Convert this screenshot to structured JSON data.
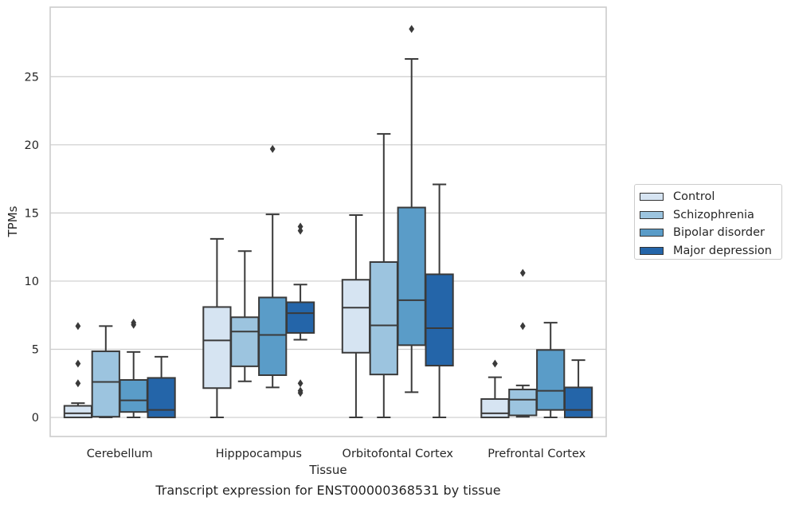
{
  "chart_data": {
    "type": "box",
    "title": "Transcript expression for ENST00000368531 by tissue",
    "xlabel": "Tissue",
    "ylabel": "TPMs",
    "ylim": [
      -1.4,
      30.1
    ],
    "yticks": [
      0,
      5,
      10,
      15,
      20,
      25
    ],
    "grid": "horizontal",
    "legend_position": "right",
    "categories": [
      "Cerebellum",
      "Hipppocampus",
      "Orbitofontal Cortex",
      "Prefrontal Cortex"
    ],
    "series": [
      {
        "name": "Control",
        "color": "#d6e4f2",
        "boxes": [
          {
            "whislo": 0,
            "q1": 0,
            "med": 0.3,
            "q3": 0.85,
            "whishi": 1.05,
            "fliers": [
              2.5,
              3.95,
              6.7
            ]
          },
          {
            "whislo": 0,
            "q1": 2.15,
            "med": 5.65,
            "q3": 8.1,
            "whishi": 13.1,
            "fliers": []
          },
          {
            "whislo": 0,
            "q1": 4.75,
            "med": 8.05,
            "q3": 10.1,
            "whishi": 14.85,
            "fliers": []
          },
          {
            "whislo": 0,
            "q1": 0,
            "med": 0.3,
            "q3": 1.35,
            "whishi": 2.95,
            "fliers": [
              3.95
            ]
          }
        ]
      },
      {
        "name": "Schizophrenia",
        "color": "#9cc4df",
        "boxes": [
          {
            "whislo": 0,
            "q1": 0.05,
            "med": 2.6,
            "q3": 4.85,
            "whishi": 6.7,
            "fliers": []
          },
          {
            "whislo": 2.65,
            "q1": 3.75,
            "med": 6.3,
            "q3": 7.35,
            "whishi": 12.2,
            "fliers": []
          },
          {
            "whislo": 0,
            "q1": 3.15,
            "med": 6.75,
            "q3": 11.4,
            "whishi": 20.8,
            "fliers": []
          },
          {
            "whislo": 0.05,
            "q1": 0.15,
            "med": 1.3,
            "q3": 2.05,
            "whishi": 2.35,
            "fliers": [
              6.7,
              10.6
            ]
          }
        ]
      },
      {
        "name": "Bipolar disorder",
        "color": "#5a9cc8",
        "boxes": [
          {
            "whislo": 0,
            "q1": 0.4,
            "med": 1.25,
            "q3": 2.75,
            "whishi": 4.8,
            "fliers": [
              6.8,
              6.95
            ]
          },
          {
            "whislo": 2.2,
            "q1": 3.1,
            "med": 6.05,
            "q3": 8.8,
            "whishi": 14.9,
            "fliers": [
              19.7
            ]
          },
          {
            "whislo": 1.85,
            "q1": 5.3,
            "med": 8.6,
            "q3": 15.4,
            "whishi": 26.3,
            "fliers": [
              28.5
            ]
          },
          {
            "whislo": 0,
            "q1": 0.55,
            "med": 1.95,
            "q3": 4.95,
            "whishi": 6.95,
            "fliers": []
          }
        ]
      },
      {
        "name": "Major depression",
        "color": "#2465a9",
        "boxes": [
          {
            "whislo": 0,
            "q1": 0,
            "med": 0.55,
            "q3": 2.9,
            "whishi": 4.45,
            "fliers": []
          },
          {
            "whislo": 5.7,
            "q1": 6.2,
            "med": 7.65,
            "q3": 8.45,
            "whishi": 9.75,
            "fliers": [
              1.8,
              1.95,
              2.5,
              13.7,
              14.0
            ]
          },
          {
            "whislo": 0,
            "q1": 3.8,
            "med": 6.55,
            "q3": 10.5,
            "whishi": 17.1,
            "fliers": []
          },
          {
            "whislo": 0,
            "q1": 0,
            "med": 0.55,
            "q3": 2.2,
            "whishi": 4.2,
            "fliers": []
          }
        ]
      }
    ]
  }
}
